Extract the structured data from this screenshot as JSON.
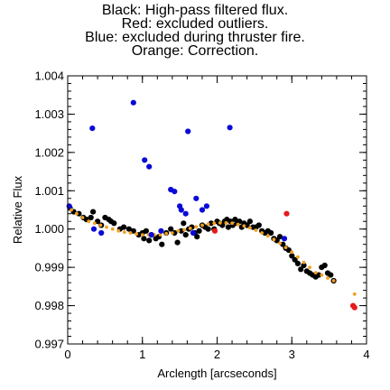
{
  "chart_data": {
    "type": "scatter",
    "title_lines": [
      "Black: High-pass filtered flux.",
      "Red: excluded outliers.",
      "Blue: excluded during thruster fire.",
      "Orange: Correction."
    ],
    "xlabel": "Arclength [arcseconds]",
    "ylabel": "Relative Flux",
    "xlim": [
      0,
      4
    ],
    "ylim": [
      0.997,
      1.004
    ],
    "xticks": [
      "0",
      "1",
      "2",
      "3",
      "4"
    ],
    "yticks": [
      "0.997",
      "0.998",
      "0.999",
      "1.000",
      "1.001",
      "1.002",
      "1.003",
      "1.004"
    ],
    "grid": false,
    "colors": {
      "black": "#000000",
      "red": "#e41a1c",
      "blue": "#0a0ad8",
      "orange": "#f0a020"
    },
    "series": [
      {
        "color_key": "black",
        "points": [
          [
            0.03,
            1.00055
          ],
          [
            0.08,
            1.00045
          ],
          [
            0.15,
            1.0004
          ],
          [
            0.21,
            1.0003
          ],
          [
            0.25,
            1.00025
          ],
          [
            0.31,
            1.0003
          ],
          [
            0.34,
            1.00045
          ],
          [
            0.4,
            1.0002
          ],
          [
            0.45,
            1.0001
          ],
          [
            0.5,
            1.0003
          ],
          [
            0.55,
            1.00025
          ],
          [
            0.58,
            1.0002
          ],
          [
            0.62,
            1.00015
          ],
          [
            0.7,
            1.0
          ],
          [
            0.75,
            1.00005
          ],
          [
            0.82,
            1.0
          ],
          [
            0.88,
            0.99995
          ],
          [
            0.95,
            0.99985
          ],
          [
            1.0,
            0.9999
          ],
          [
            1.02,
            0.99975
          ],
          [
            1.05,
            0.99995
          ],
          [
            1.09,
            0.9997
          ],
          [
            1.12,
            0.99985
          ],
          [
            1.18,
            0.99975
          ],
          [
            1.22,
            0.9998
          ],
          [
            1.26,
            0.9996
          ],
          [
            1.32,
            0.9999
          ],
          [
            1.38,
            1.0
          ],
          [
            1.43,
            0.9999
          ],
          [
            1.47,
            0.99965
          ],
          [
            1.52,
            0.99995
          ],
          [
            1.55,
            1.00015
          ],
          [
            1.58,
            0.99985
          ],
          [
            1.62,
            1.0
          ],
          [
            1.66,
            1.00005
          ],
          [
            1.7,
            0.9999
          ],
          [
            1.73,
            0.9998
          ],
          [
            1.76,
            0.99995
          ],
          [
            1.8,
            1.0001
          ],
          [
            1.84,
            1.00005
          ],
          [
            1.88,
            1.0
          ],
          [
            1.92,
            1.00015
          ],
          [
            1.96,
            1.0
          ],
          [
            2.0,
            1.0002
          ],
          [
            2.03,
            1.00015
          ],
          [
            2.07,
            1.0001
          ],
          [
            2.1,
            1.0002
          ],
          [
            2.13,
            1.00025
          ],
          [
            2.15,
            1.00005
          ],
          [
            2.18,
            1.0002
          ],
          [
            2.21,
            1.0001
          ],
          [
            2.24,
            1.00025
          ],
          [
            2.27,
            1.00015
          ],
          [
            2.3,
            1.0002
          ],
          [
            2.33,
            1.00005
          ],
          [
            2.36,
            1.00015
          ],
          [
            2.4,
            1.0001
          ],
          [
            2.44,
            1.0002
          ],
          [
            2.48,
            1.00005
          ],
          [
            2.52,
            1.00005
          ],
          [
            2.56,
            1.0001
          ],
          [
            2.6,
            0.99995
          ],
          [
            2.64,
            0.9999
          ],
          [
            2.68,
            0.99995
          ],
          [
            2.72,
            0.9999
          ],
          [
            2.76,
            0.99975
          ],
          [
            2.8,
            0.9997
          ],
          [
            2.84,
            0.9998
          ],
          [
            2.88,
            0.9996
          ],
          [
            2.92,
            0.9995
          ],
          [
            2.96,
            0.99945
          ],
          [
            3.0,
            0.9993
          ],
          [
            3.04,
            0.9992
          ],
          [
            3.08,
            0.9991
          ],
          [
            3.12,
            0.99895
          ],
          [
            3.16,
            0.99905
          ],
          [
            3.2,
            0.9989
          ],
          [
            3.24,
            0.99885
          ],
          [
            3.28,
            0.9988
          ],
          [
            3.32,
            0.99875
          ],
          [
            3.36,
            0.9988
          ],
          [
            3.4,
            0.999
          ],
          [
            3.44,
            0.99905
          ],
          [
            3.48,
            0.99885
          ],
          [
            3.52,
            0.9988
          ],
          [
            3.56,
            0.99865
          ]
        ]
      },
      {
        "color_key": "orange",
        "points": [
          [
            0.05,
            1.0005
          ],
          [
            0.12,
            1.0004
          ],
          [
            0.2,
            1.0003
          ],
          [
            0.28,
            1.0002
          ],
          [
            0.36,
            1.00015
          ],
          [
            0.44,
            1.0001
          ],
          [
            0.52,
            1.00005
          ],
          [
            0.6,
            1.0
          ],
          [
            0.68,
            0.99995
          ],
          [
            0.76,
            0.99992
          ],
          [
            0.84,
            0.9999
          ],
          [
            0.92,
            0.99987
          ],
          [
            1.0,
            0.99985
          ],
          [
            1.08,
            0.99985
          ],
          [
            1.16,
            0.99985
          ],
          [
            1.24,
            0.99985
          ],
          [
            1.32,
            0.99988
          ],
          [
            1.4,
            0.9999
          ],
          [
            1.48,
            0.99995
          ],
          [
            1.56,
            0.99998
          ],
          [
            1.64,
            1.00002
          ],
          [
            1.72,
            1.00006
          ],
          [
            1.8,
            1.0001
          ],
          [
            1.88,
            1.00013
          ],
          [
            1.96,
            1.00015
          ],
          [
            2.04,
            1.00016
          ],
          [
            2.12,
            1.00016
          ],
          [
            2.2,
            1.00015
          ],
          [
            2.28,
            1.00012
          ],
          [
            2.36,
            1.00008
          ],
          [
            2.44,
            1.00003
          ],
          [
            2.52,
            0.99997
          ],
          [
            2.6,
            0.9999
          ],
          [
            2.68,
            0.99982
          ],
          [
            2.76,
            0.99973
          ],
          [
            2.84,
            0.99963
          ],
          [
            2.92,
            0.99952
          ],
          [
            3.0,
            0.9994
          ],
          [
            3.08,
            0.99927
          ],
          [
            3.16,
            0.99913
          ],
          [
            3.24,
            0.999
          ],
          [
            3.32,
            0.99886
          ],
          [
            3.4,
            0.9988
          ],
          [
            3.48,
            0.99872
          ],
          [
            3.56,
            0.99865
          ],
          [
            3.84,
            0.9983
          ]
        ]
      },
      {
        "color_key": "red",
        "points": [
          [
            1.97,
            0.99995
          ],
          [
            2.93,
            1.0004
          ],
          [
            3.82,
            0.998
          ],
          [
            3.84,
            0.99795
          ]
        ]
      },
      {
        "color_key": "blue",
        "points": [
          [
            0.02,
            1.0006
          ],
          [
            0.33,
            1.00263
          ],
          [
            0.35,
            1.0
          ],
          [
            0.45,
            0.9999
          ],
          [
            0.88,
            1.0033
          ],
          [
            1.03,
            1.0018
          ],
          [
            1.09,
            1.00163
          ],
          [
            1.12,
            0.99985
          ],
          [
            1.25,
            0.99995
          ],
          [
            1.38,
            1.00103
          ],
          [
            1.43,
            1.00098
          ],
          [
            1.5,
            1.0006
          ],
          [
            1.52,
            1.0005
          ],
          [
            1.58,
            1.0004
          ],
          [
            1.61,
            1.00255
          ],
          [
            1.68,
            0.9999
          ],
          [
            1.72,
            1.0008
          ],
          [
            1.8,
            1.0005
          ],
          [
            1.86,
            1.0006
          ],
          [
            2.17,
            1.00265
          ],
          [
            2.9,
            0.99975
          ]
        ]
      }
    ]
  }
}
